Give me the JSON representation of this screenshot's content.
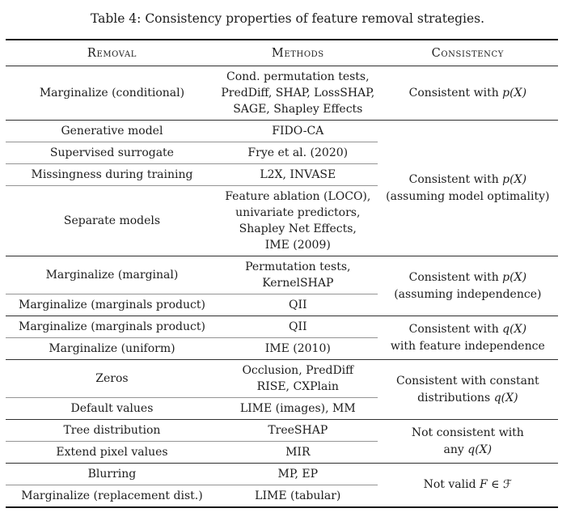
{
  "title": "Table 4: Consistency properties of feature removal strategies.",
  "table": {
    "headers": [
      "Removal",
      "Methods",
      "Consistency"
    ],
    "groups": [
      {
        "rows": [
          {
            "removal": "Marginalize (conditional)",
            "methods": [
              "Cond. permutation tests,",
              "PredDiff, SHAP, LossSHAP,",
              "SAGE, Shapley Effects"
            ]
          }
        ],
        "consistency": [
          [
            {
              "t": "Consistent with "
            },
            {
              "t": "p(X)",
              "math": true
            }
          ]
        ]
      },
      {
        "rows": [
          {
            "removal": "Generative model",
            "methods": [
              "FIDO-CA"
            ]
          },
          {
            "removal": "Supervised surrogate",
            "methods": [
              "Frye et al. (2020)"
            ]
          },
          {
            "removal": "Missingness during training",
            "methods": [
              "L2X, INVASE"
            ]
          },
          {
            "removal": "Separate models",
            "methods": [
              "Feature ablation (LOCO),",
              "univariate predictors,",
              "Shapley Net Effects,",
              "IME (2009)"
            ]
          }
        ],
        "consistency": [
          [
            {
              "t": "Consistent with "
            },
            {
              "t": "p(X)",
              "math": true
            }
          ],
          [
            {
              "t": "(assuming model optimality)"
            }
          ]
        ]
      },
      {
        "rows": [
          {
            "removal": "Marginalize (marginal)",
            "methods": [
              "Permutation tests,",
              "KernelSHAP"
            ]
          },
          {
            "removal": "Marginalize (marginals product)",
            "methods": [
              "QII"
            ]
          }
        ],
        "consistency": [
          [
            {
              "t": "Consistent with "
            },
            {
              "t": "p(X)",
              "math": true
            }
          ],
          [
            {
              "t": "(assuming independence)"
            }
          ]
        ]
      },
      {
        "rows": [
          {
            "removal": "Marginalize (marginals product)",
            "methods": [
              "QII"
            ]
          },
          {
            "removal": "Marginalize (uniform)",
            "methods": [
              "IME (2010)"
            ]
          }
        ],
        "consistency": [
          [
            {
              "t": "Consistent with "
            },
            {
              "t": "q(X)",
              "math": true
            }
          ],
          [
            {
              "t": "with feature independence"
            }
          ]
        ]
      },
      {
        "rows": [
          {
            "removal": "Zeros",
            "methods": [
              "Occlusion, PredDiff",
              "RISE, CXPlain"
            ]
          },
          {
            "removal": "Default values",
            "methods": [
              "LIME (images), MM"
            ]
          }
        ],
        "consistency": [
          [
            {
              "t": "Consistent with constant"
            }
          ],
          [
            {
              "t": "distributions "
            },
            {
              "t": "q(X)",
              "math": true
            }
          ]
        ]
      },
      {
        "rows": [
          {
            "removal": "Tree distribution",
            "methods": [
              "TreeSHAP"
            ]
          },
          {
            "removal": "Extend pixel values",
            "methods": [
              "MIR"
            ]
          }
        ],
        "consistency": [
          [
            {
              "t": "Not consistent with"
            }
          ],
          [
            {
              "t": "any "
            },
            {
              "t": "q(X)",
              "math": true
            }
          ]
        ]
      },
      {
        "rows": [
          {
            "removal": "Blurring",
            "methods": [
              "MP, EP"
            ]
          },
          {
            "removal": "Marginalize (replacement dist.)",
            "methods": [
              "LIME (tabular)"
            ]
          }
        ],
        "consistency": [
          [
            {
              "t": "Not valid "
            },
            {
              "t": "F",
              "math": true
            },
            {
              "t": " ∈ "
            },
            {
              "t": "ℱ",
              "frak": true
            }
          ]
        ]
      }
    ]
  }
}
